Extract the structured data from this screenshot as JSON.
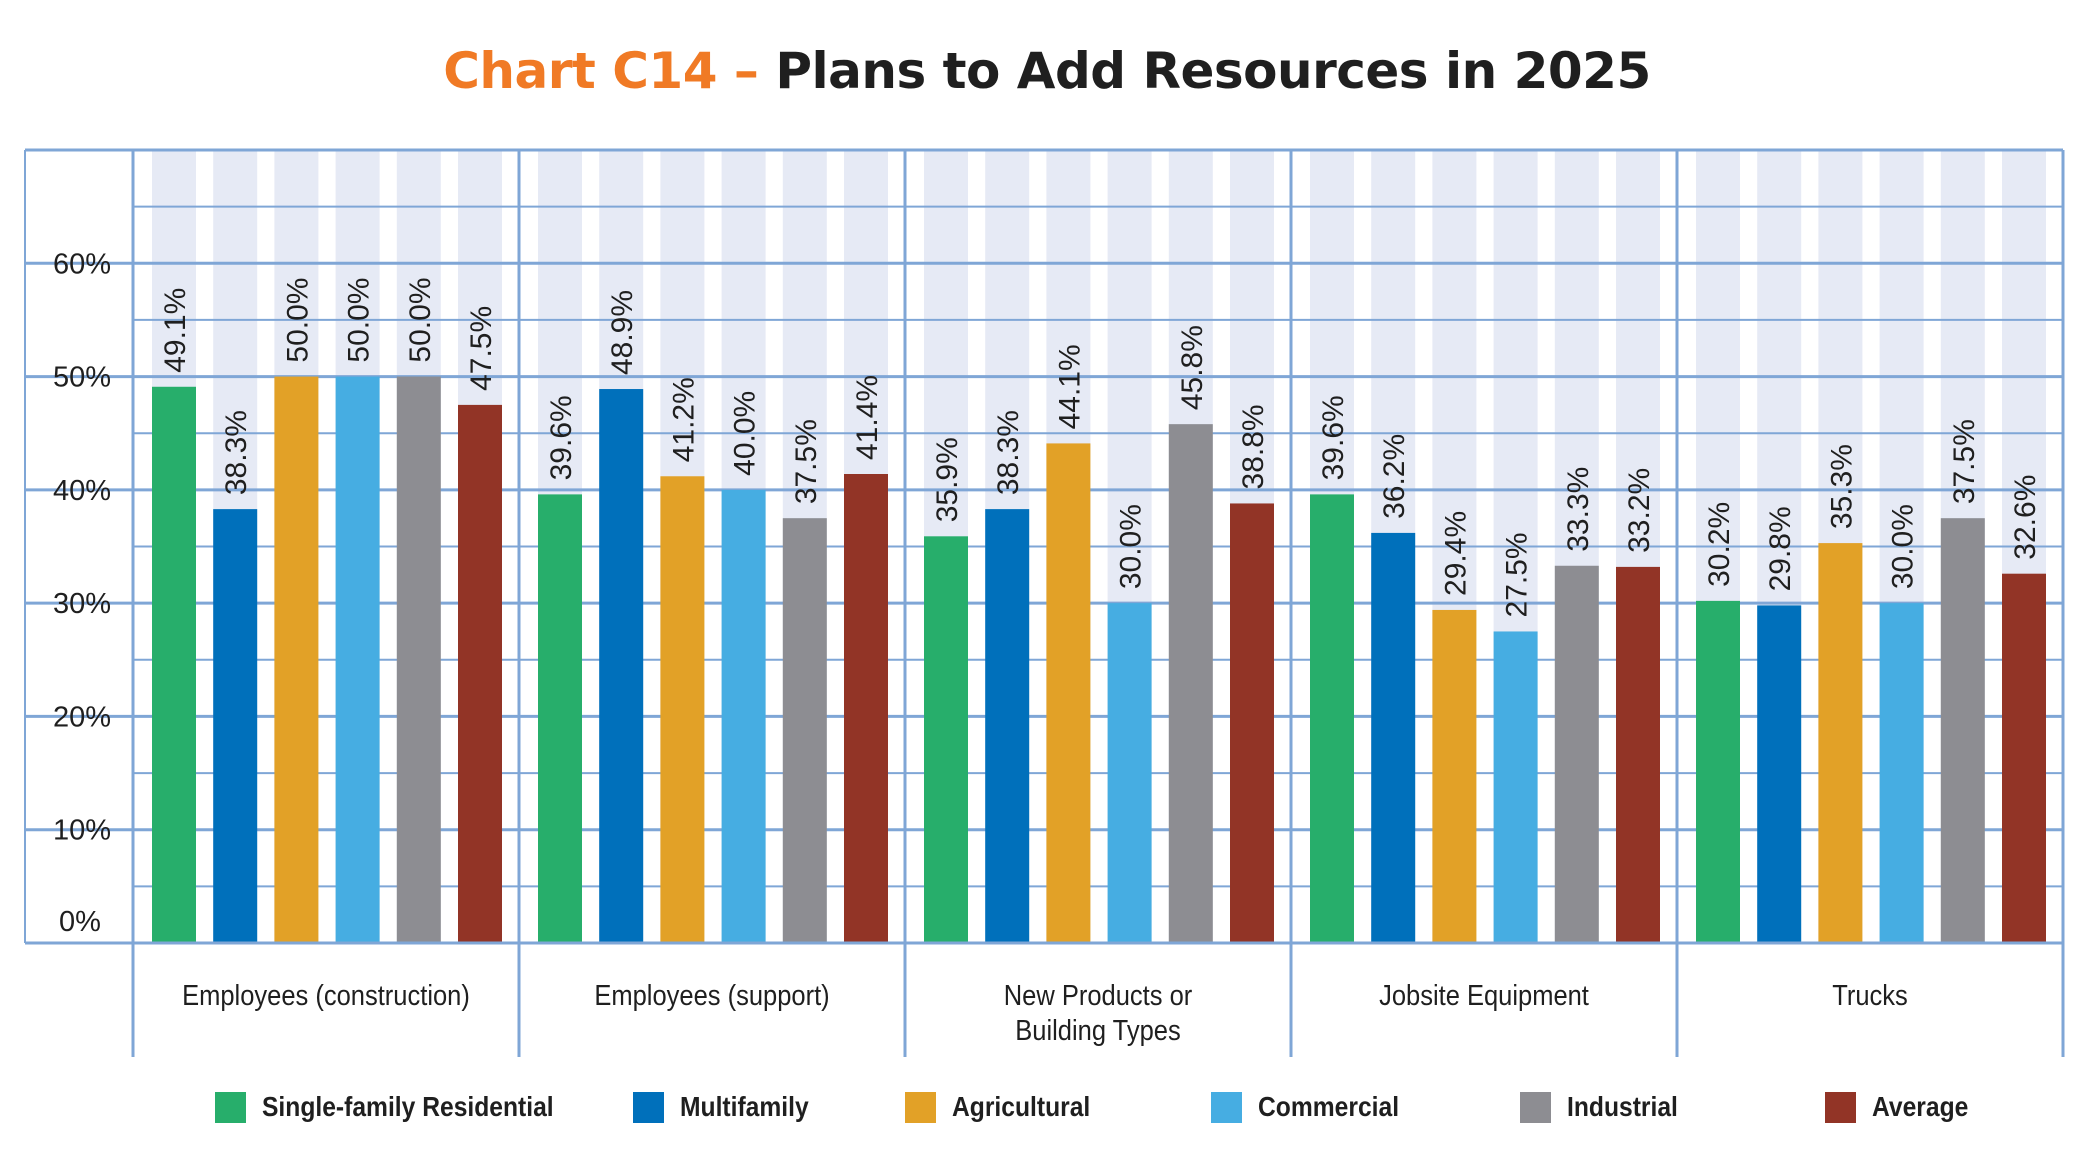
{
  "title": {
    "prefix": "Chart C14 –",
    "main": "Plans to Add Resources in 2025"
  },
  "colors": {
    "accent_title": "#f07a25",
    "grid": "#7fa6d6",
    "band": "#e6eaf5",
    "series": [
      "#27ae6b",
      "#0070bb",
      "#e2a127",
      "#46ade2",
      "#8d8d92",
      "#923426"
    ]
  },
  "chart_data": {
    "type": "bar",
    "title": "Plans to Add Resources in 2025",
    "categories": [
      "Employees (construction)",
      "Employees (support)",
      "New Products or Building Types",
      "Jobsite Equipment",
      "Trucks"
    ],
    "category_lines": [
      [
        "Employees (construction)"
      ],
      [
        "Employees (support)"
      ],
      [
        "New Products or",
        "Building Types"
      ],
      [
        "Jobsite Equipment"
      ],
      [
        "Trucks"
      ]
    ],
    "series": [
      {
        "name": "Single-family Residential",
        "values": [
          49.1,
          39.6,
          35.9,
          39.6,
          30.2
        ]
      },
      {
        "name": "Multifamily",
        "values": [
          38.3,
          48.9,
          38.3,
          36.2,
          29.8
        ]
      },
      {
        "name": "Agricultural",
        "values": [
          50.0,
          41.2,
          44.1,
          29.4,
          35.3
        ]
      },
      {
        "name": "Commercial",
        "values": [
          50.0,
          40.0,
          30.0,
          27.5,
          30.0
        ]
      },
      {
        "name": "Industrial",
        "values": [
          50.0,
          37.5,
          45.8,
          33.3,
          37.5
        ]
      },
      {
        "name": "Average",
        "values": [
          47.5,
          41.4,
          38.8,
          33.2,
          32.6
        ]
      }
    ],
    "value_suffix": "%",
    "ylim": [
      0,
      70
    ],
    "yticks": [
      0,
      10,
      20,
      30,
      40,
      50,
      60
    ],
    "ytick_labels": [
      "0%",
      "10%",
      "20%",
      "30%",
      "40%",
      "50%",
      "60%"
    ],
    "xlabel": "",
    "ylabel": "",
    "grid": true,
    "legend_position": "bottom"
  }
}
